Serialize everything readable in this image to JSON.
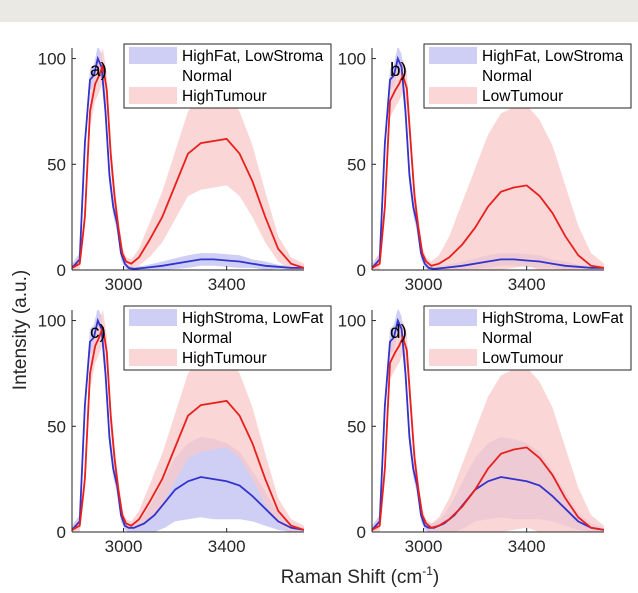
{
  "figure": {
    "xlabel_main": "Raman Shift (cm",
    "xlabel_sup": "-1",
    "xlabel_close": ")",
    "ylabel": "Intensity (a.u.)"
  },
  "colors": {
    "normal": "#3333cc",
    "normal_fill": "#c7c7f5",
    "tumour": "#e8201c",
    "tumour_fill": "#f8c8c8"
  },
  "chart_data": [
    {
      "panel": "a)",
      "type": "line",
      "xlim": [
        2800,
        3700
      ],
      "ylim": [
        0,
        105
      ],
      "xticks": [
        3000,
        3400
      ],
      "yticks": [
        0,
        50,
        100
      ],
      "legend": {
        "placement": "top-right",
        "entries": [
          "HighFat, LowStroma",
          "Normal",
          "HighTumour"
        ]
      },
      "series": [
        {
          "name": "Normal",
          "color": "#3333cc",
          "fill": "#c7c7f5",
          "x": [
            2800,
            2830,
            2850,
            2870,
            2885,
            2900,
            2915,
            2930,
            2945,
            2960,
            2975,
            2990,
            3005,
            3020,
            3040,
            3080,
            3150,
            3250,
            3300,
            3350,
            3400,
            3450,
            3500,
            3550,
            3600,
            3650,
            3700
          ],
          "y": [
            1,
            5,
            60,
            90,
            92,
            100,
            96,
            75,
            45,
            30,
            22,
            8,
            3,
            1,
            0.5,
            1,
            2,
            4,
            5,
            5,
            4.5,
            4,
            3,
            2,
            1.5,
            1,
            1
          ],
          "band": [
            2,
            3,
            4,
            5,
            5,
            6,
            6,
            6,
            5,
            4,
            4,
            3,
            2,
            1,
            1,
            1,
            2,
            3,
            3,
            3,
            3,
            3,
            2,
            2,
            1,
            1,
            1
          ]
        },
        {
          "name": "HighTumour",
          "color": "#e8201c",
          "fill": "#f8c8c8",
          "x": [
            2800,
            2830,
            2850,
            2870,
            2890,
            2905,
            2920,
            2935,
            2950,
            2965,
            2980,
            2995,
            3010,
            3030,
            3060,
            3100,
            3150,
            3200,
            3250,
            3300,
            3350,
            3400,
            3450,
            3500,
            3550,
            3600,
            3650,
            3700
          ],
          "y": [
            1,
            3,
            25,
            75,
            88,
            92,
            97,
            85,
            55,
            35,
            20,
            8,
            4,
            3,
            6,
            14,
            25,
            40,
            55,
            60,
            61,
            62,
            55,
            42,
            25,
            10,
            3,
            1
          ],
          "band": [
            2,
            3,
            6,
            8,
            8,
            8,
            8,
            8,
            7,
            6,
            5,
            3,
            2,
            2,
            4,
            8,
            12,
            16,
            20,
            22,
            22,
            22,
            20,
            17,
            12,
            6,
            3,
            2
          ]
        }
      ]
    },
    {
      "panel": "b)",
      "type": "line",
      "xlim": [
        2800,
        3700
      ],
      "ylim": [
        0,
        105
      ],
      "xticks": [
        3000,
        3400
      ],
      "yticks": [
        0,
        50,
        100
      ],
      "legend": {
        "placement": "top-right",
        "entries": [
          "HighFat, LowStroma",
          "Normal",
          "LowTumour"
        ]
      },
      "series": [
        {
          "name": "Normal",
          "color": "#3333cc",
          "fill": "#c7c7f5",
          "x": [
            2800,
            2830,
            2850,
            2870,
            2885,
            2900,
            2915,
            2930,
            2945,
            2960,
            2975,
            2990,
            3005,
            3020,
            3040,
            3080,
            3150,
            3250,
            3300,
            3350,
            3400,
            3450,
            3500,
            3550,
            3600,
            3650,
            3700
          ],
          "y": [
            1,
            5,
            60,
            90,
            92,
            100,
            96,
            75,
            45,
            30,
            22,
            8,
            3,
            1,
            0.5,
            1,
            2,
            4,
            5,
            5,
            4.5,
            4,
            3,
            2,
            1.5,
            1,
            1
          ],
          "band": [
            2,
            3,
            4,
            5,
            5,
            6,
            6,
            6,
            5,
            4,
            4,
            3,
            2,
            1,
            1,
            1,
            2,
            3,
            3,
            3,
            3,
            3,
            2,
            2,
            1,
            1,
            1
          ]
        },
        {
          "name": "LowTumour",
          "color": "#e8201c",
          "fill": "#f8c8c8",
          "x": [
            2800,
            2830,
            2850,
            2870,
            2890,
            2905,
            2920,
            2935,
            2950,
            2965,
            2980,
            2995,
            3010,
            3030,
            3060,
            3100,
            3150,
            3200,
            3250,
            3300,
            3350,
            3400,
            3450,
            3500,
            3550,
            3600,
            3650,
            3700
          ],
          "y": [
            1,
            3,
            30,
            80,
            85,
            88,
            92,
            86,
            60,
            35,
            20,
            8,
            4,
            2,
            3,
            6,
            12,
            20,
            30,
            37,
            39,
            40,
            35,
            27,
            16,
            7,
            2,
            1
          ],
          "band": [
            2,
            3,
            6,
            8,
            8,
            8,
            8,
            8,
            7,
            6,
            5,
            3,
            2,
            2,
            4,
            10,
            20,
            28,
            34,
            37,
            38,
            38,
            36,
            32,
            24,
            14,
            6,
            2
          ]
        }
      ]
    },
    {
      "panel": "c)",
      "type": "line",
      "xlim": [
        2800,
        3700
      ],
      "ylim": [
        0,
        105
      ],
      "xticks": [
        3000,
        3400
      ],
      "yticks": [
        0,
        50,
        100
      ],
      "legend": {
        "placement": "top-right",
        "entries": [
          "HighStroma, LowFat",
          "Normal",
          "HighTumour"
        ]
      },
      "series": [
        {
          "name": "Normal",
          "color": "#3333cc",
          "fill": "#c7c7f5",
          "x": [
            2800,
            2830,
            2850,
            2870,
            2885,
            2900,
            2915,
            2930,
            2945,
            2960,
            2975,
            2990,
            3005,
            3020,
            3040,
            3080,
            3120,
            3160,
            3200,
            3250,
            3300,
            3350,
            3400,
            3450,
            3500,
            3550,
            3600,
            3650,
            3700
          ],
          "y": [
            1,
            5,
            60,
            90,
            92,
            100,
            96,
            75,
            45,
            30,
            22,
            8,
            3,
            2,
            2,
            4,
            8,
            14,
            20,
            24,
            26,
            25,
            24,
            22,
            17,
            11,
            5,
            2,
            1
          ],
          "band": [
            2,
            3,
            5,
            6,
            6,
            6,
            6,
            6,
            5,
            4,
            4,
            3,
            2,
            2,
            2,
            4,
            8,
            12,
            15,
            18,
            19,
            19,
            18,
            16,
            12,
            8,
            4,
            2,
            1
          ]
        },
        {
          "name": "HighTumour",
          "color": "#e8201c",
          "fill": "#f8c8c8",
          "x": [
            2800,
            2830,
            2850,
            2870,
            2890,
            2905,
            2920,
            2935,
            2950,
            2965,
            2980,
            2995,
            3010,
            3030,
            3060,
            3100,
            3150,
            3200,
            3250,
            3300,
            3350,
            3400,
            3450,
            3500,
            3550,
            3600,
            3650,
            3700
          ],
          "y": [
            1,
            3,
            25,
            75,
            88,
            92,
            97,
            85,
            55,
            35,
            20,
            8,
            4,
            3,
            6,
            14,
            25,
            40,
            55,
            60,
            61,
            62,
            55,
            42,
            25,
            10,
            3,
            1
          ],
          "band": [
            2,
            3,
            6,
            8,
            8,
            8,
            8,
            8,
            7,
            6,
            5,
            3,
            2,
            2,
            4,
            8,
            12,
            16,
            20,
            22,
            22,
            22,
            20,
            17,
            12,
            6,
            3,
            2
          ]
        }
      ]
    },
    {
      "panel": "d)",
      "type": "line",
      "xlim": [
        2800,
        3700
      ],
      "ylim": [
        0,
        105
      ],
      "xticks": [
        3000,
        3400
      ],
      "yticks": [
        0,
        50,
        100
      ],
      "legend": {
        "placement": "top-right",
        "entries": [
          "HighStroma, LowFat",
          "Normal",
          "LowTumour"
        ]
      },
      "series": [
        {
          "name": "Normal",
          "color": "#3333cc",
          "fill": "#c7c7f5",
          "x": [
            2800,
            2830,
            2850,
            2870,
            2885,
            2900,
            2915,
            2930,
            2945,
            2960,
            2975,
            2990,
            3005,
            3020,
            3040,
            3080,
            3120,
            3160,
            3200,
            3250,
            3300,
            3350,
            3400,
            3450,
            3500,
            3550,
            3600,
            3650,
            3700
          ],
          "y": [
            1,
            5,
            60,
            90,
            92,
            100,
            96,
            75,
            45,
            30,
            22,
            8,
            3,
            2,
            2,
            4,
            8,
            14,
            20,
            24,
            26,
            25,
            24,
            22,
            17,
            11,
            5,
            2,
            1
          ],
          "band": [
            2,
            3,
            5,
            6,
            6,
            6,
            6,
            6,
            5,
            4,
            4,
            3,
            2,
            2,
            2,
            4,
            8,
            12,
            15,
            18,
            19,
            19,
            18,
            16,
            12,
            8,
            4,
            2,
            1
          ]
        },
        {
          "name": "LowTumour",
          "color": "#e8201c",
          "fill": "#f8c8c8",
          "x": [
            2800,
            2830,
            2850,
            2870,
            2890,
            2905,
            2920,
            2935,
            2950,
            2965,
            2980,
            2995,
            3010,
            3030,
            3060,
            3100,
            3150,
            3200,
            3250,
            3300,
            3350,
            3400,
            3450,
            3500,
            3550,
            3600,
            3650,
            3700
          ],
          "y": [
            1,
            3,
            30,
            80,
            85,
            88,
            92,
            86,
            60,
            35,
            20,
            8,
            4,
            2,
            3,
            6,
            12,
            20,
            30,
            37,
            39,
            40,
            35,
            27,
            16,
            7,
            2,
            1
          ],
          "band": [
            2,
            3,
            6,
            8,
            8,
            8,
            8,
            8,
            7,
            6,
            5,
            3,
            2,
            2,
            4,
            10,
            20,
            28,
            34,
            37,
            38,
            38,
            36,
            32,
            24,
            14,
            6,
            2
          ]
        }
      ]
    }
  ]
}
